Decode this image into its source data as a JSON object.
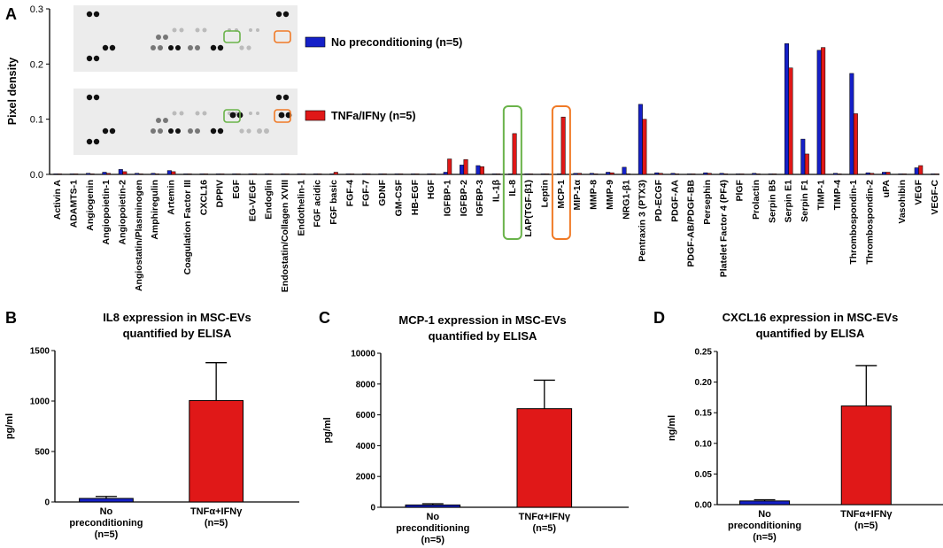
{
  "panels": {
    "a": "A",
    "b": "B",
    "c": "C",
    "d": "D"
  },
  "colors": {
    "no_preconditioning": "#1520c8",
    "tnf_ifn": "#e01818",
    "il8_box": "#6ab34a",
    "mcp1_box": "#f07a26",
    "blot_bg": "#ececec"
  },
  "chart_data": [
    {
      "id": "A",
      "type": "bar",
      "title": "",
      "ylabel": "Pixel density",
      "ylim": [
        0,
        0.3
      ],
      "yticks": [
        "0.0",
        "0.1",
        "0.2",
        "0.3"
      ],
      "legend": [
        {
          "label": "No preconditioning (n=5)",
          "color": "#1520c8"
        },
        {
          "label": "TNFa/IFNy (n=5)",
          "color": "#e01818"
        }
      ],
      "highlighted": [
        "IL-8",
        "MCP-1"
      ],
      "categories": [
        "Activin A",
        "ADAMTS-1",
        "Angiogenin",
        "Angiopoietin-1",
        "Angiopoietin-2",
        "Angiostatin/Plasminogen",
        "Amphiregulin",
        "Artemin",
        "Coagulation Factor III",
        "CXCL16",
        "DPPIV",
        "EGF",
        "EG-VEGF",
        "Endoglin",
        "Endostatin/Collagen XVIII",
        "Endothelin-1",
        "FGF acidic",
        "FGF basic",
        "FGF-4",
        "FGF-7",
        "GDNF",
        "GM-CSF",
        "HB-EGF",
        "HGF",
        "IGFBP-1",
        "IGFBP-2",
        "IGFBP-3",
        "IL-1β",
        "IL-8",
        "LAP(TGF-β1)",
        "Leptin",
        "MCP-1",
        "MIP-1α",
        "MMP-8",
        "MMP-9",
        "NRG1-β1",
        "Pentraxin 3 (PTX3)",
        "PD-ECGF",
        "PDGF-AA",
        "PDGF-AB/PDGF-BB",
        "Persephin",
        "Platelet Factor 4 (PF4)",
        "PlGF",
        "Prolactin",
        "Serpin B5",
        "Serpin E1",
        "Serpin F1",
        "TIMP-1",
        "TIMP-4",
        "Thrombospondin-1",
        "Thrombospondin-2",
        "uPA",
        "Vasohibin",
        "VEGF",
        "VEGF-C"
      ],
      "series": [
        {
          "name": "No preconditioning (n=5)",
          "values": [
            0.001,
            0.001,
            0.002,
            0.004,
            0.009,
            0.002,
            0.002,
            0.007,
            0.001,
            0.001,
            0.001,
            0.001,
            0.001,
            0.001,
            0.001,
            0.001,
            0.001,
            0.001,
            0.001,
            0.001,
            0.001,
            0.001,
            0.001,
            0.001,
            0.004,
            0.017,
            0.016,
            0.001,
            0.001,
            0.001,
            0.001,
            0.001,
            0.002,
            0.002,
            0.004,
            0.013,
            0.127,
            0.003,
            0.002,
            0.001,
            0.003,
            0.002,
            0.001,
            0.002,
            0.001,
            0.237,
            0.064,
            0.225,
            0.002,
            0.183,
            0.003,
            0.004,
            0.001,
            0.012,
            0.001
          ]
        },
        {
          "name": "TNFa/IFNy (n=5)",
          "values": [
            0.001,
            0.001,
            0.001,
            0.002,
            0.005,
            0.001,
            0.001,
            0.005,
            0.001,
            0.001,
            0.001,
            0.001,
            0.001,
            0.001,
            0.001,
            0.001,
            0.001,
            0.004,
            0.001,
            0.001,
            0.001,
            0.001,
            0.001,
            0.001,
            0.028,
            0.027,
            0.014,
            0.001,
            0.074,
            0.001,
            0.001,
            0.104,
            0.002,
            0.001,
            0.003,
            0.001,
            0.1,
            0.002,
            0.001,
            0.001,
            0.002,
            0.001,
            0.001,
            0.001,
            0.001,
            0.193,
            0.037,
            0.23,
            0.001,
            0.11,
            0.002,
            0.004,
            0.001,
            0.016,
            0.001
          ]
        }
      ]
    },
    {
      "id": "B",
      "type": "bar",
      "title": "IL8 expression in MSC-EVs",
      "subtitle": "quantified by ELISA",
      "ylabel": "pg/ml",
      "ylim": [
        0,
        1500
      ],
      "yticks": [
        "0",
        "500",
        "1000",
        "1500"
      ],
      "categories": [
        [
          "No",
          "preconditioning",
          "(n=5)"
        ],
        [
          "TNFα+IFNγ",
          "(n=5)"
        ]
      ],
      "values": [
        35,
        1005
      ],
      "errors": [
        20,
        375
      ]
    },
    {
      "id": "C",
      "type": "bar",
      "title": "MCP-1 expression in MSC-EVs",
      "subtitle": "quantified by ELISA",
      "ylabel": "pg/ml",
      "ylim": [
        0,
        10000
      ],
      "yticks": [
        "0",
        "2000",
        "4000",
        "6000",
        "8000",
        "10000"
      ],
      "categories": [
        [
          "No",
          "preconditioning",
          "(n=5)"
        ],
        [
          "TNFα+IFNγ",
          "(n=5)"
        ]
      ],
      "values": [
        150,
        6400
      ],
      "errors": [
        80,
        1850
      ]
    },
    {
      "id": "D",
      "type": "bar",
      "title": "CXCL16 expression in MSC-EVs",
      "subtitle": "quantified by ELISA",
      "ylabel": "ng/ml",
      "ylim": [
        0,
        0.25
      ],
      "yticks": [
        "0.00",
        "0.05",
        "0.10",
        "0.15",
        "0.20",
        "0.25"
      ],
      "categories": [
        [
          "No",
          "preconditioning",
          "(n=5)"
        ],
        [
          "TNFα+IFNγ",
          "(n=5)"
        ]
      ],
      "values": [
        0.006,
        0.161
      ],
      "errors": [
        0.002,
        0.066
      ]
    }
  ]
}
